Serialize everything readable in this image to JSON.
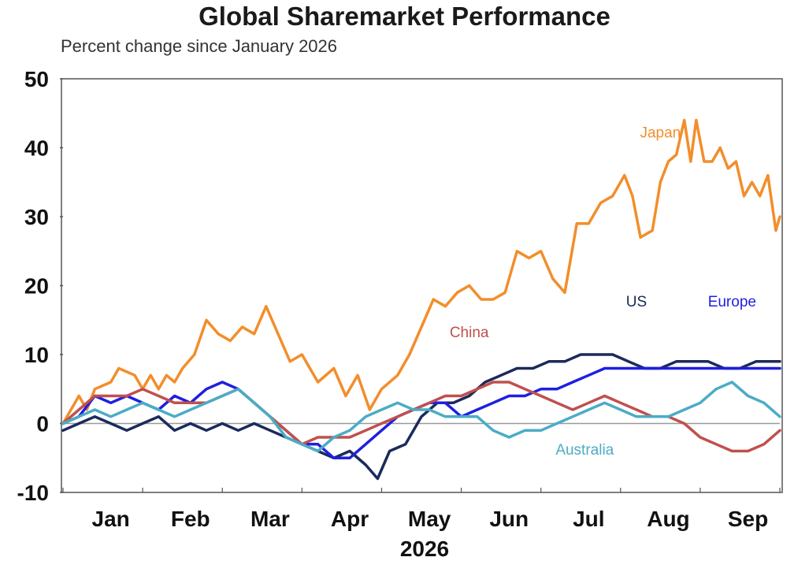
{
  "chart_data": {
    "type": "line",
    "title": "Global Sharemarket Performance",
    "subtitle": "Percent change since January 2026",
    "xlabel": "2026",
    "ylabel": "",
    "ylim": [
      -10,
      50
    ],
    "yticks": [
      50,
      40,
      30,
      20,
      10,
      0,
      -10
    ],
    "xticks": [
      "Jan",
      "Feb",
      "Mar",
      "Apr",
      "May",
      "Jun",
      "Jul",
      "Aug",
      "Sep"
    ],
    "grid": false,
    "zero_line": true,
    "xrange": [
      0,
      9
    ],
    "series": [
      {
        "name": "Japan",
        "color": "#f28e2b",
        "label_at": [
          7.5,
          41.5
        ],
        "points": [
          [
            0.0,
            0
          ],
          [
            0.2,
            4
          ],
          [
            0.3,
            2
          ],
          [
            0.4,
            5
          ],
          [
            0.6,
            6
          ],
          [
            0.7,
            8
          ],
          [
            0.9,
            7
          ],
          [
            1.0,
            5
          ],
          [
            1.1,
            7
          ],
          [
            1.2,
            5
          ],
          [
            1.3,
            7
          ],
          [
            1.4,
            6
          ],
          [
            1.5,
            8
          ],
          [
            1.65,
            10
          ],
          [
            1.8,
            15
          ],
          [
            1.95,
            13
          ],
          [
            2.1,
            12
          ],
          [
            2.25,
            14
          ],
          [
            2.4,
            13
          ],
          [
            2.55,
            17
          ],
          [
            2.7,
            13
          ],
          [
            2.85,
            9
          ],
          [
            3.0,
            10
          ],
          [
            3.2,
            6
          ],
          [
            3.4,
            8
          ],
          [
            3.55,
            4
          ],
          [
            3.7,
            7
          ],
          [
            3.85,
            2
          ],
          [
            4.0,
            5
          ],
          [
            4.2,
            7
          ],
          [
            4.35,
            10
          ],
          [
            4.5,
            14
          ],
          [
            4.65,
            18
          ],
          [
            4.8,
            17
          ],
          [
            4.95,
            19
          ],
          [
            5.1,
            20
          ],
          [
            5.25,
            18
          ],
          [
            5.4,
            18
          ],
          [
            5.55,
            19
          ],
          [
            5.7,
            25
          ],
          [
            5.85,
            24
          ],
          [
            6.0,
            25
          ],
          [
            6.15,
            21
          ],
          [
            6.3,
            19
          ],
          [
            6.45,
            29
          ],
          [
            6.6,
            29
          ],
          [
            6.75,
            32
          ],
          [
            6.9,
            33
          ],
          [
            7.05,
            36
          ],
          [
            7.15,
            33
          ],
          [
            7.25,
            27
          ],
          [
            7.4,
            28
          ],
          [
            7.5,
            35
          ],
          [
            7.6,
            38
          ],
          [
            7.7,
            39
          ],
          [
            7.8,
            44
          ],
          [
            7.88,
            38
          ],
          [
            7.95,
            44
          ],
          [
            8.05,
            38
          ],
          [
            8.15,
            38
          ],
          [
            8.25,
            40
          ],
          [
            8.35,
            37
          ],
          [
            8.45,
            38
          ],
          [
            8.55,
            33
          ],
          [
            8.65,
            35
          ],
          [
            8.75,
            33
          ],
          [
            8.85,
            36
          ],
          [
            8.95,
            28
          ],
          [
            9.0,
            30
          ]
        ]
      },
      {
        "name": "US",
        "color": "#1b2a5c",
        "label_at": [
          7.2,
          17
        ],
        "points": [
          [
            0.0,
            -1
          ],
          [
            0.2,
            0
          ],
          [
            0.4,
            1
          ],
          [
            0.6,
            0
          ],
          [
            0.8,
            -1
          ],
          [
            1.0,
            0
          ],
          [
            1.2,
            1
          ],
          [
            1.4,
            -1
          ],
          [
            1.6,
            0
          ],
          [
            1.8,
            -1
          ],
          [
            2.0,
            0
          ],
          [
            2.2,
            -1
          ],
          [
            2.4,
            0
          ],
          [
            2.6,
            -1
          ],
          [
            2.8,
            -2
          ],
          [
            3.0,
            -3
          ],
          [
            3.2,
            -4
          ],
          [
            3.4,
            -5
          ],
          [
            3.6,
            -4
          ],
          [
            3.8,
            -6
          ],
          [
            3.95,
            -8
          ],
          [
            4.1,
            -4
          ],
          [
            4.3,
            -3
          ],
          [
            4.5,
            1
          ],
          [
            4.7,
            3
          ],
          [
            4.9,
            3
          ],
          [
            5.1,
            4
          ],
          [
            5.3,
            6
          ],
          [
            5.5,
            7
          ],
          [
            5.7,
            8
          ],
          [
            5.9,
            8
          ],
          [
            6.1,
            9
          ],
          [
            6.3,
            9
          ],
          [
            6.5,
            10
          ],
          [
            6.7,
            10
          ],
          [
            6.9,
            10
          ],
          [
            7.1,
            9
          ],
          [
            7.3,
            8
          ],
          [
            7.5,
            8
          ],
          [
            7.7,
            9
          ],
          [
            7.9,
            9
          ],
          [
            8.1,
            9
          ],
          [
            8.3,
            8
          ],
          [
            8.5,
            8
          ],
          [
            8.7,
            9
          ],
          [
            8.9,
            9
          ],
          [
            9.0,
            9
          ]
        ]
      },
      {
        "name": "Europe",
        "color": "#1f1fe0",
        "label_at": [
          8.4,
          17
        ],
        "points": [
          [
            0.0,
            0
          ],
          [
            0.2,
            1
          ],
          [
            0.4,
            4
          ],
          [
            0.6,
            3
          ],
          [
            0.8,
            4
          ],
          [
            1.0,
            3
          ],
          [
            1.2,
            2
          ],
          [
            1.4,
            4
          ],
          [
            1.6,
            3
          ],
          [
            1.8,
            5
          ],
          [
            2.0,
            6
          ],
          [
            2.2,
            5
          ],
          [
            2.4,
            3
          ],
          [
            2.6,
            1
          ],
          [
            2.8,
            -1
          ],
          [
            3.0,
            -3
          ],
          [
            3.2,
            -3
          ],
          [
            3.4,
            -5
          ],
          [
            3.6,
            -5
          ],
          [
            3.8,
            -3
          ],
          [
            4.0,
            -1
          ],
          [
            4.2,
            1
          ],
          [
            4.4,
            2
          ],
          [
            4.6,
            3
          ],
          [
            4.8,
            3
          ],
          [
            5.0,
            1
          ],
          [
            5.2,
            2
          ],
          [
            5.4,
            3
          ],
          [
            5.6,
            4
          ],
          [
            5.8,
            4
          ],
          [
            6.0,
            5
          ],
          [
            6.2,
            5
          ],
          [
            6.4,
            6
          ],
          [
            6.6,
            7
          ],
          [
            6.8,
            8
          ],
          [
            7.0,
            8
          ],
          [
            7.2,
            8
          ],
          [
            7.4,
            8
          ],
          [
            7.6,
            8
          ],
          [
            7.8,
            8
          ],
          [
            8.0,
            8
          ],
          [
            8.2,
            8
          ],
          [
            8.4,
            8
          ],
          [
            8.6,
            8
          ],
          [
            8.8,
            8
          ],
          [
            9.0,
            8
          ]
        ]
      },
      {
        "name": "China",
        "color": "#c0504d",
        "label_at": [
          5.1,
          12.5
        ],
        "points": [
          [
            0.0,
            0
          ],
          [
            0.2,
            2
          ],
          [
            0.4,
            4
          ],
          [
            0.6,
            4
          ],
          [
            0.8,
            4
          ],
          [
            1.0,
            5
          ],
          [
            1.2,
            4
          ],
          [
            1.4,
            3
          ],
          [
            1.6,
            3
          ],
          [
            1.8,
            3
          ],
          [
            2.0,
            4
          ],
          [
            2.2,
            5
          ],
          [
            2.4,
            3
          ],
          [
            2.6,
            1
          ],
          [
            2.8,
            -1
          ],
          [
            3.0,
            -3
          ],
          [
            3.2,
            -2
          ],
          [
            3.4,
            -2
          ],
          [
            3.6,
            -2
          ],
          [
            3.8,
            -1
          ],
          [
            4.0,
            0
          ],
          [
            4.2,
            1
          ],
          [
            4.4,
            2
          ],
          [
            4.6,
            3
          ],
          [
            4.8,
            4
          ],
          [
            5.0,
            4
          ],
          [
            5.2,
            5
          ],
          [
            5.4,
            6
          ],
          [
            5.6,
            6
          ],
          [
            5.8,
            5
          ],
          [
            6.0,
            4
          ],
          [
            6.2,
            3
          ],
          [
            6.4,
            2
          ],
          [
            6.6,
            3
          ],
          [
            6.8,
            4
          ],
          [
            7.0,
            3
          ],
          [
            7.2,
            2
          ],
          [
            7.4,
            1
          ],
          [
            7.6,
            1
          ],
          [
            7.8,
            0
          ],
          [
            8.0,
            -2
          ],
          [
            8.2,
            -3
          ],
          [
            8.4,
            -4
          ],
          [
            8.6,
            -4
          ],
          [
            8.8,
            -3
          ],
          [
            9.0,
            -1
          ]
        ]
      },
      {
        "name": "Australia",
        "color": "#4bacc6",
        "label_at": [
          6.55,
          -4.5
        ],
        "points": [
          [
            0.0,
            0
          ],
          [
            0.2,
            1
          ],
          [
            0.4,
            2
          ],
          [
            0.6,
            1
          ],
          [
            0.8,
            2
          ],
          [
            1.0,
            3
          ],
          [
            1.2,
            2
          ],
          [
            1.4,
            1
          ],
          [
            1.6,
            2
          ],
          [
            1.8,
            3
          ],
          [
            2.0,
            4
          ],
          [
            2.2,
            5
          ],
          [
            2.4,
            3
          ],
          [
            2.6,
            1
          ],
          [
            2.8,
            -2
          ],
          [
            3.0,
            -3
          ],
          [
            3.2,
            -4
          ],
          [
            3.4,
            -2
          ],
          [
            3.6,
            -1
          ],
          [
            3.8,
            1
          ],
          [
            4.0,
            2
          ],
          [
            4.2,
            3
          ],
          [
            4.4,
            2
          ],
          [
            4.6,
            2
          ],
          [
            4.8,
            1
          ],
          [
            5.0,
            1
          ],
          [
            5.2,
            1
          ],
          [
            5.4,
            -1
          ],
          [
            5.6,
            -2
          ],
          [
            5.8,
            -1
          ],
          [
            6.0,
            -1
          ],
          [
            6.2,
            0
          ],
          [
            6.4,
            1
          ],
          [
            6.6,
            2
          ],
          [
            6.8,
            3
          ],
          [
            7.0,
            2
          ],
          [
            7.2,
            1
          ],
          [
            7.4,
            1
          ],
          [
            7.6,
            1
          ],
          [
            7.8,
            2
          ],
          [
            8.0,
            3
          ],
          [
            8.2,
            5
          ],
          [
            8.4,
            6
          ],
          [
            8.6,
            4
          ],
          [
            8.8,
            3
          ],
          [
            9.0,
            1
          ]
        ]
      }
    ]
  }
}
